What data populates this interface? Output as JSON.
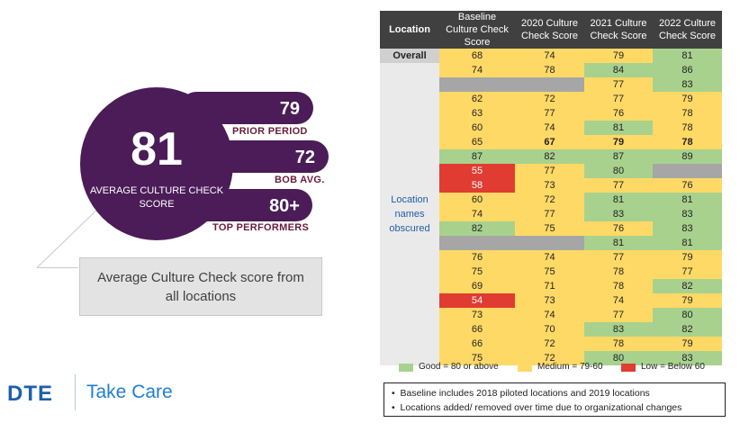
{
  "kpi": {
    "main_value": "81",
    "main_label": "AVERAGE CULTURE CHECK SCORE",
    "prior_value": "79",
    "prior_label": "PRIOR PERIOD",
    "bob_value": "72",
    "bob_label": "BOB AVG.",
    "top_value": "80+",
    "top_label": "TOP PERFORMERS",
    "callout": "Average Culture Check score from all locations"
  },
  "logo": {
    "brand": "DTE",
    "tagline": "Take Care"
  },
  "table": {
    "headers": [
      "Location",
      "Baseline Culture Check Score",
      "2020 Culture Check Score",
      "2021 Culture Check Score",
      "2022 Culture Check Score"
    ],
    "overall_label": "Overall",
    "obscured_note": "Location names obscured",
    "rows": [
      [
        [
          "68",
          "Y"
        ],
        [
          "74",
          "Y"
        ],
        [
          "79",
          "Y"
        ],
        [
          "81",
          "G"
        ]
      ],
      [
        [
          "74",
          "Y"
        ],
        [
          "78",
          "Y"
        ],
        [
          "84",
          "G"
        ],
        [
          "86",
          "G"
        ]
      ],
      [
        [
          "",
          "X"
        ],
        [
          "",
          "X"
        ],
        [
          "77",
          "Y"
        ],
        [
          "83",
          "G"
        ]
      ],
      [
        [
          "62",
          "Y"
        ],
        [
          "72",
          "Y"
        ],
        [
          "77",
          "Y"
        ],
        [
          "79",
          "Y"
        ]
      ],
      [
        [
          "63",
          "Y"
        ],
        [
          "77",
          "Y"
        ],
        [
          "76",
          "Y"
        ],
        [
          "78",
          "Y"
        ]
      ],
      [
        [
          "60",
          "Y"
        ],
        [
          "74",
          "Y"
        ],
        [
          "81",
          "G"
        ],
        [
          "78",
          "Y"
        ]
      ],
      [
        [
          "65",
          "Y"
        ],
        [
          "67",
          "YB"
        ],
        [
          "79",
          "YB"
        ],
        [
          "78",
          "YB"
        ]
      ],
      [
        [
          "87",
          "G"
        ],
        [
          "82",
          "G"
        ],
        [
          "87",
          "G"
        ],
        [
          "89",
          "G"
        ]
      ],
      [
        [
          "55",
          "R"
        ],
        [
          "77",
          "Y"
        ],
        [
          "80",
          "G"
        ],
        [
          "",
          "X"
        ]
      ],
      [
        [
          "58",
          "R"
        ],
        [
          "73",
          "Y"
        ],
        [
          "77",
          "Y"
        ],
        [
          "76",
          "Y"
        ]
      ],
      [
        [
          "60",
          "Y"
        ],
        [
          "72",
          "Y"
        ],
        [
          "81",
          "G"
        ],
        [
          "81",
          "G"
        ]
      ],
      [
        [
          "74",
          "Y"
        ],
        [
          "77",
          "Y"
        ],
        [
          "83",
          "G"
        ],
        [
          "83",
          "G"
        ]
      ],
      [
        [
          "82",
          "G"
        ],
        [
          "75",
          "Y"
        ],
        [
          "76",
          "Y"
        ],
        [
          "83",
          "G"
        ]
      ],
      [
        [
          "",
          "X"
        ],
        [
          "",
          "X"
        ],
        [
          "81",
          "G"
        ],
        [
          "81",
          "G"
        ]
      ],
      [
        [
          "76",
          "Y"
        ],
        [
          "74",
          "Y"
        ],
        [
          "77",
          "Y"
        ],
        [
          "79",
          "Y"
        ]
      ],
      [
        [
          "75",
          "Y"
        ],
        [
          "75",
          "Y"
        ],
        [
          "78",
          "Y"
        ],
        [
          "77",
          "Y"
        ]
      ],
      [
        [
          "69",
          "Y"
        ],
        [
          "71",
          "Y"
        ],
        [
          "78",
          "Y"
        ],
        [
          "82",
          "G"
        ]
      ],
      [
        [
          "54",
          "R"
        ],
        [
          "73",
          "Y"
        ],
        [
          "74",
          "Y"
        ],
        [
          "79",
          "Y"
        ]
      ],
      [
        [
          "73",
          "Y"
        ],
        [
          "74",
          "Y"
        ],
        [
          "77",
          "Y"
        ],
        [
          "80",
          "G"
        ]
      ],
      [
        [
          "66",
          "Y"
        ],
        [
          "70",
          "Y"
        ],
        [
          "83",
          "G"
        ],
        [
          "82",
          "G"
        ]
      ],
      [
        [
          "66",
          "Y"
        ],
        [
          "72",
          "Y"
        ],
        [
          "78",
          "Y"
        ],
        [
          "79",
          "Y"
        ]
      ],
      [
        [
          "75",
          "Y"
        ],
        [
          "72",
          "Y"
        ],
        [
          "80",
          "G"
        ],
        [
          "83",
          "G"
        ]
      ]
    ]
  },
  "legend": {
    "good": "Good = 80 or above",
    "medium": "Medium = 79-60",
    "low": "Low = Below 60",
    "colors": {
      "good": "#a9d18e",
      "medium": "#ffd966",
      "low": "#e03c31",
      "na": "#a6a6a6"
    }
  },
  "footnotes": [
    "Baseline includes 2018 piloted locations and 2019 locations",
    "Locations added/ removed over time due to organizational  changes"
  ]
}
